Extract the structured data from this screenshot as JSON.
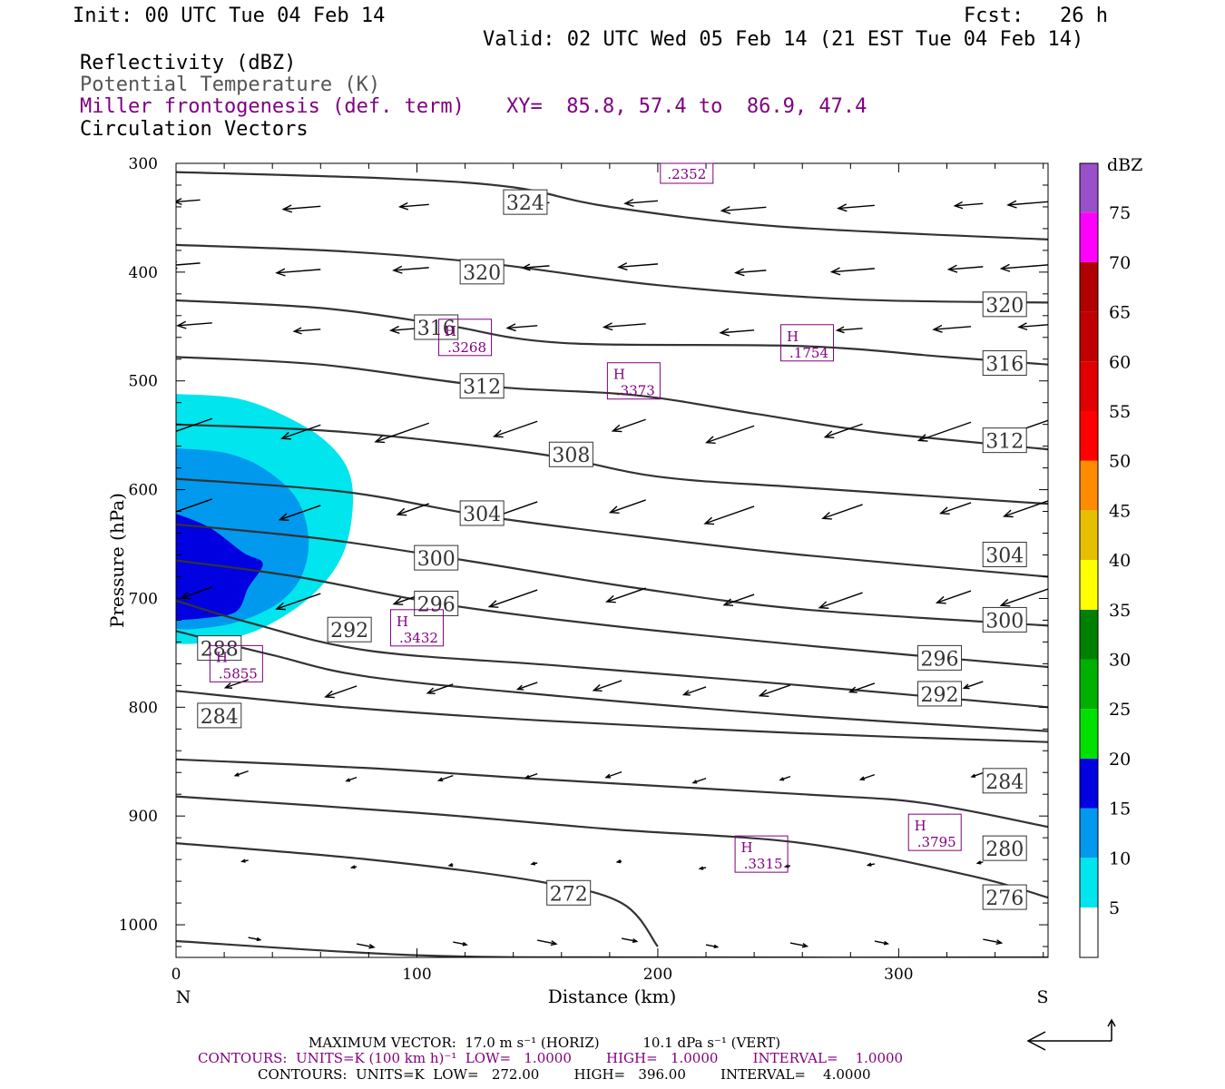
{
  "header": {
    "init": "Init: 00 UTC Tue 04 Feb 14",
    "fcst": "Fcst:   26 h",
    "valid": "Valid: 02 UTC Wed 05 Feb 14 (21 EST Tue 04 Feb 14)",
    "field1": "Reflectivity (dBZ)",
    "field2": "Potential Temperature (K)",
    "field3": "Miller frontogenesis (def. term)",
    "xy": "XY=  85.8, 57.4 to  86.9, 47.4",
    "field4": "Circulation Vectors"
  },
  "colors": {
    "purple": "#800080",
    "contour": "#333333",
    "refl_5": "#00e5ee",
    "refl_10": "#0099ee",
    "refl_15": "#0000e0"
  },
  "chart_data": {
    "type": "cross-section",
    "xlabel": "Distance (km)",
    "ylabel": "Pressure (hPa)",
    "xlim": [
      0,
      362
    ],
    "ylim": [
      1030,
      300
    ],
    "x_ticks": [
      "0",
      "100",
      "200",
      "300"
    ],
    "y_ticks": [
      "300",
      "400",
      "500",
      "600",
      "700",
      "800",
      "900",
      "1000"
    ],
    "left_end_label": "N",
    "right_end_label": "S",
    "theta_contours": [
      {
        "label": "324",
        "points": [
          [
            0,
            308
          ],
          [
            90,
            314
          ],
          [
            140,
            322
          ],
          [
            180,
            340
          ],
          [
            250,
            358
          ],
          [
            362,
            370
          ]
        ],
        "labels_at": [
          [
            145,
            336
          ]
        ]
      },
      {
        "label": "320",
        "points": [
          [
            0,
            375
          ],
          [
            70,
            381
          ],
          [
            130,
            392
          ],
          [
            200,
            412
          ],
          [
            280,
            425
          ],
          [
            362,
            428
          ]
        ],
        "labels_at": [
          [
            127,
            400
          ],
          [
            344,
            430
          ]
        ]
      },
      {
        "label": "316",
        "points": [
          [
            0,
            426
          ],
          [
            60,
            433
          ],
          [
            110,
            448
          ],
          [
            160,
            465
          ],
          [
            260,
            468
          ],
          [
            320,
            478
          ],
          [
            362,
            485
          ]
        ],
        "labels_at": [
          [
            108,
            451
          ],
          [
            344,
            484
          ]
        ]
      },
      {
        "label": "312",
        "points": [
          [
            0,
            478
          ],
          [
            60,
            485
          ],
          [
            130,
            505
          ],
          [
            190,
            513
          ],
          [
            240,
            530
          ],
          [
            290,
            547
          ],
          [
            362,
            563
          ]
        ],
        "labels_at": [
          [
            127,
            505
          ],
          [
            344,
            555
          ]
        ]
      },
      {
        "label": "308",
        "points": [
          [
            0,
            540
          ],
          [
            70,
            547
          ],
          [
            150,
            567
          ],
          [
            200,
            588
          ],
          [
            260,
            598
          ],
          [
            362,
            613
          ]
        ],
        "labels_at": [
          [
            164,
            568
          ]
        ]
      },
      {
        "label": "304",
        "points": [
          [
            0,
            590
          ],
          [
            70,
            602
          ],
          [
            130,
            625
          ],
          [
            200,
            645
          ],
          [
            260,
            660
          ],
          [
            362,
            680
          ]
        ],
        "labels_at": [
          [
            127,
            622
          ],
          [
            344,
            660
          ]
        ]
      },
      {
        "label": "300",
        "points": [
          [
            0,
            632
          ],
          [
            60,
            645
          ],
          [
            120,
            665
          ],
          [
            190,
            690
          ],
          [
            260,
            710
          ],
          [
            362,
            725
          ]
        ],
        "labels_at": [
          [
            108,
            663
          ],
          [
            344,
            720
          ]
        ]
      },
      {
        "label": "296",
        "points": [
          [
            0,
            665
          ],
          [
            50,
            680
          ],
          [
            110,
            705
          ],
          [
            180,
            725
          ],
          [
            270,
            745
          ],
          [
            362,
            763
          ]
        ],
        "labels_at": [
          [
            108,
            705
          ],
          [
            317,
            755
          ]
        ]
      },
      {
        "label": "292",
        "points": [
          [
            0,
            702
          ],
          [
            30,
            722
          ],
          [
            80,
            748
          ],
          [
            160,
            762
          ],
          [
            260,
            780
          ],
          [
            362,
            800
          ]
        ],
        "labels_at": [
          [
            72,
            729
          ],
          [
            317,
            788
          ]
        ]
      },
      {
        "label": "288",
        "points": [
          [
            0,
            730
          ],
          [
            40,
            752
          ],
          [
            80,
            772
          ],
          [
            160,
            790
          ],
          [
            260,
            808
          ],
          [
            362,
            822
          ]
        ],
        "labels_at": [
          [
            18,
            746
          ]
        ]
      },
      {
        "label": "284",
        "points": [
          [
            0,
            785
          ],
          [
            70,
            800
          ],
          [
            150,
            812
          ],
          [
            260,
            824
          ],
          [
            362,
            832
          ]
        ],
        "labels_at": [
          [
            18,
            808
          ],
          [
            344,
            868
          ]
        ]
      },
      {
        "label": "280",
        "points": [
          [
            0,
            848
          ],
          [
            80,
            856
          ],
          [
            150,
            866
          ],
          [
            260,
            880
          ],
          [
            310,
            888
          ],
          [
            362,
            910
          ]
        ],
        "labels_at": [
          [
            344,
            930
          ]
        ]
      },
      {
        "label": "276",
        "points": [
          [
            0,
            882
          ],
          [
            100,
            897
          ],
          [
            180,
            912
          ],
          [
            260,
            925
          ],
          [
            330,
            955
          ],
          [
            362,
            975
          ]
        ],
        "labels_at": [
          [
            344,
            975
          ]
        ]
      },
      {
        "label": "272",
        "points": [
          [
            0,
            925
          ],
          [
            80,
            940
          ],
          [
            150,
            960
          ],
          [
            185,
            980
          ],
          [
            200,
            1020
          ]
        ],
        "labels_at": [
          [
            163,
            971
          ]
        ]
      },
      {
        "label": "",
        "points": [
          [
            0,
            1015
          ],
          [
            100,
            1028
          ],
          [
            200,
            1030
          ],
          [
            362,
            1030
          ]
        ],
        "labels_at": []
      }
    ],
    "reflectivity_levels": [
      "5",
      "10",
      "15",
      "20",
      "25",
      "30",
      "35",
      "40",
      "45",
      "50",
      "55",
      "60",
      "65",
      "70",
      "75"
    ],
    "colorbar_unit": "dBZ",
    "colorbar_colors": [
      "#00e5ee",
      "#0099ee",
      "#0000e0",
      "#00e000",
      "#00b000",
      "#008000",
      "#ffff00",
      "#e6c000",
      "#ff8c00",
      "#ff0000",
      "#e00000",
      "#c00000",
      "#b00000",
      "#ff00ff",
      "#9a50c8"
    ],
    "frontogenesis_maxima": [
      {
        "label": "H",
        "value": ".2352",
        "x": 212,
        "p": 310
      },
      {
        "label": "H",
        "value": ".3268",
        "x": 120,
        "p": 460
      },
      {
        "label": "H",
        "value": ".1754",
        "x": 262,
        "p": 465
      },
      {
        "label": "H",
        "value": ".3373",
        "x": 190,
        "p": 500
      },
      {
        "label": "H",
        "value": ".3432",
        "x": 100,
        "p": 727
      },
      {
        "label": "H",
        "value": ".5855",
        "x": 25,
        "p": 760
      },
      {
        "label": "H",
        "value": ".3795",
        "x": 315,
        "p": 915
      },
      {
        "label": "H",
        "value": ".3315",
        "x": 243,
        "p": 935
      }
    ]
  },
  "footer": {
    "max_vector": "MAXIMUM VECTOR:  17.0 m s⁻¹ (HORIZ)          10.1 dPa s⁻¹ (VERT)",
    "contours1": "CONTOURS:  UNITS=K (100 km h)⁻¹  LOW=   1.0000        HIGH=   1.0000        INTERVAL=    1.0000",
    "contours2": "CONTOURS:  UNITS=K  LOW=   272.00        HIGH=   396.00        INTERVAL=    4.0000"
  }
}
